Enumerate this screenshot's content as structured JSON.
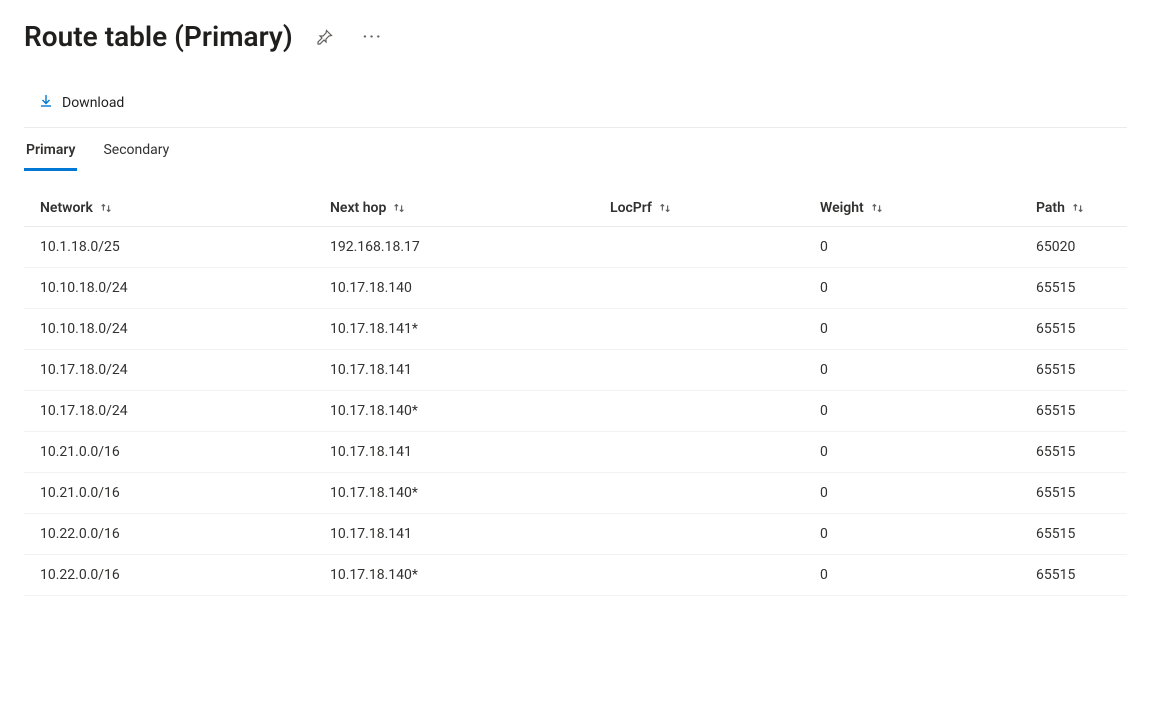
{
  "header": {
    "title": "Route table (Primary)"
  },
  "toolbar": {
    "download_label": "Download"
  },
  "tabs": [
    {
      "label": "Primary",
      "active": true
    },
    {
      "label": "Secondary",
      "active": false
    }
  ],
  "table": {
    "columns": [
      {
        "key": "network",
        "label": "Network"
      },
      {
        "key": "nexthop",
        "label": "Next hop"
      },
      {
        "key": "locprf",
        "label": "LocPrf"
      },
      {
        "key": "weight",
        "label": "Weight"
      },
      {
        "key": "path",
        "label": "Path"
      }
    ],
    "rows": [
      {
        "network": "10.1.18.0/25",
        "nexthop": "192.168.18.17",
        "locprf": "",
        "weight": "0",
        "path": "65020"
      },
      {
        "network": "10.10.18.0/24",
        "nexthop": "10.17.18.140",
        "locprf": "",
        "weight": "0",
        "path": "65515"
      },
      {
        "network": "10.10.18.0/24",
        "nexthop": "10.17.18.141*",
        "locprf": "",
        "weight": "0",
        "path": "65515"
      },
      {
        "network": "10.17.18.0/24",
        "nexthop": "10.17.18.141",
        "locprf": "",
        "weight": "0",
        "path": "65515"
      },
      {
        "network": "10.17.18.0/24",
        "nexthop": "10.17.18.140*",
        "locprf": "",
        "weight": "0",
        "path": "65515"
      },
      {
        "network": "10.21.0.0/16",
        "nexthop": "10.17.18.141",
        "locprf": "",
        "weight": "0",
        "path": "65515"
      },
      {
        "network": "10.21.0.0/16",
        "nexthop": "10.17.18.140*",
        "locprf": "",
        "weight": "0",
        "path": "65515"
      },
      {
        "network": "10.22.0.0/16",
        "nexthop": "10.17.18.141",
        "locprf": "",
        "weight": "0",
        "path": "65515"
      },
      {
        "network": "10.22.0.0/16",
        "nexthop": "10.17.18.140*",
        "locprf": "",
        "weight": "0",
        "path": "65515"
      }
    ]
  },
  "colors": {
    "accent": "#0078d4",
    "text": "#323130",
    "border": "#edebe9",
    "row_border": "#f3f2f1",
    "background": "#ffffff"
  },
  "typography": {
    "title_fontsize": 28,
    "body_fontsize": 14,
    "font_family": "Segoe UI"
  }
}
